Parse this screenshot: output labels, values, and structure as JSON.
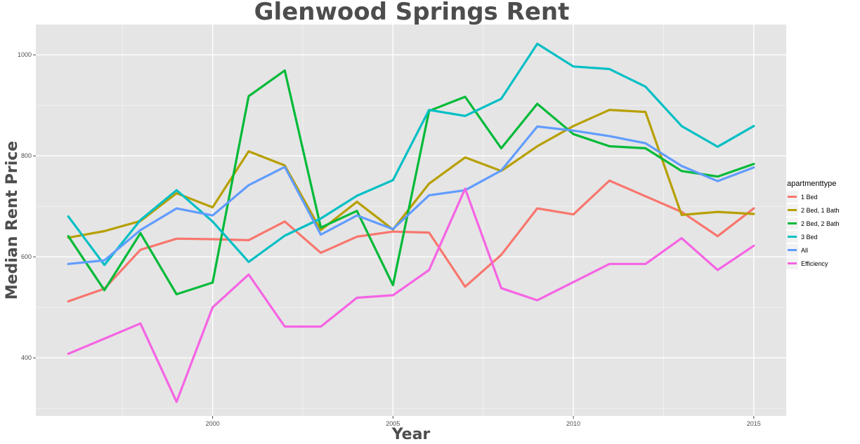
{
  "chart_data": {
    "type": "line",
    "title": "Glenwood Springs Rent",
    "xlabel": "Year",
    "ylabel": "Median Rent Price",
    "xlim": [
      1995.1,
      2015.9
    ],
    "ylim": [
      285,
      1060
    ],
    "xticks": [
      2000,
      2005,
      2010,
      2015
    ],
    "yticks": [
      400,
      600,
      800,
      1000
    ],
    "grid": true,
    "legend_title": "apartmenttype",
    "legend_position": "right",
    "x": [
      1996,
      1997,
      1998,
      1999,
      2000,
      2001,
      2002,
      2003,
      2004,
      2005,
      2006,
      2007,
      2008,
      2009,
      2010,
      2011,
      2012,
      2013,
      2014,
      2015
    ],
    "series": [
      {
        "name": "1 Bed",
        "color": "#F8766D",
        "values": [
          512,
          537,
          614,
          636,
          635,
          633,
          670,
          608,
          640,
          650,
          648,
          541,
          604,
          696,
          684,
          751,
          720,
          689,
          641,
          696
        ]
      },
      {
        "name": "2 Bed, 1 Bath",
        "color": "#B79F00",
        "values": [
          638,
          651,
          671,
          726,
          698,
          809,
          781,
          653,
          709,
          654,
          745,
          797,
          770,
          819,
          859,
          891,
          887,
          683,
          689,
          685
        ]
      },
      {
        "name": "2 Bed, 2 Bath",
        "color": "#00BA38",
        "values": [
          641,
          534,
          647,
          526,
          549,
          918,
          969,
          658,
          691,
          544,
          889,
          917,
          815,
          903,
          843,
          819,
          815,
          770,
          759,
          784
        ]
      },
      {
        "name": "3 Bed",
        "color": "#00BFC4",
        "values": [
          680,
          584,
          673,
          732,
          670,
          590,
          642,
          676,
          721,
          752,
          891,
          879,
          913,
          1022,
          977,
          972,
          937,
          859,
          818,
          859
        ]
      },
      {
        "name": "All",
        "color": "#619CFF",
        "values": [
          586,
          593,
          653,
          696,
          682,
          742,
          778,
          644,
          682,
          655,
          722,
          732,
          771,
          858,
          850,
          839,
          825,
          780,
          750,
          777
        ]
      },
      {
        "name": "Efficiency",
        "color": "#F564E3",
        "values": [
          408,
          null,
          468,
          313,
          500,
          565,
          462,
          462,
          519,
          524,
          574,
          735,
          538,
          514,
          null,
          586,
          586,
          637,
          574,
          622
        ]
      }
    ]
  }
}
